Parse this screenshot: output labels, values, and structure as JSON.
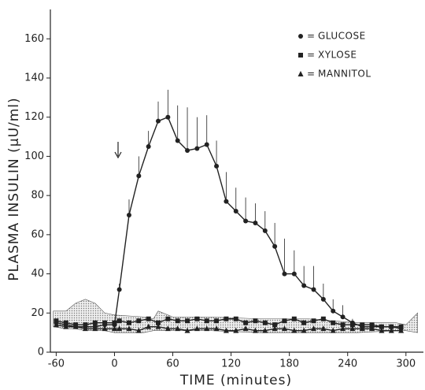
{
  "chart_data": {
    "type": "line",
    "x_label": "TIME (minutes)",
    "y_label": "PLASMA INSULIN (µU/ml)",
    "xlim": [
      -66,
      318
    ],
    "ylim": [
      0,
      175
    ],
    "xticks": [
      -60,
      0,
      60,
      120,
      180,
      240,
      300
    ],
    "yticks": [
      0,
      20,
      40,
      60,
      80,
      100,
      120,
      140,
      160
    ],
    "legend_position": "upper right",
    "legend_separator": "=",
    "x": [
      -60,
      -50,
      -40,
      -30,
      -20,
      -10,
      0,
      5,
      15,
      25,
      35,
      45,
      55,
      65,
      75,
      85,
      95,
      105,
      115,
      125,
      135,
      145,
      155,
      165,
      175,
      185,
      195,
      205,
      215,
      225,
      235,
      245,
      255,
      265,
      275,
      285,
      295
    ],
    "series": [
      {
        "name": "GLUCOSE",
        "color": "#222222",
        "marker": "circle",
        "values": [
          15,
          14,
          13,
          13,
          13,
          14,
          14,
          32,
          70,
          90,
          105,
          118,
          120,
          108,
          103,
          104,
          106,
          95,
          77,
          72,
          67,
          66,
          62,
          54,
          40,
          40,
          34,
          32,
          27,
          21,
          18,
          15,
          13,
          13,
          13,
          13,
          12
        ],
        "errors": [
          0,
          0,
          0,
          0,
          0,
          0,
          0,
          3,
          8,
          10,
          8,
          10,
          14,
          18,
          22,
          16,
          15,
          13,
          15,
          12,
          12,
          10,
          10,
          12,
          18,
          12,
          10,
          12,
          8,
          6,
          6,
          2,
          0,
          0,
          0,
          0,
          0
        ]
      },
      {
        "name": "XYLOSE",
        "color": "#222222",
        "marker": "square",
        "values": [
          16,
          15,
          14,
          14,
          15,
          15,
          15,
          16,
          15,
          16,
          17,
          15,
          17,
          16,
          16,
          17,
          16,
          16,
          17,
          17,
          15,
          16,
          15,
          14,
          16,
          17,
          15,
          16,
          17,
          15,
          14,
          14,
          14,
          14,
          13,
          13,
          13
        ]
      },
      {
        "name": "MANNITOL",
        "color": "#222222",
        "marker": "triangle",
        "values": [
          14,
          13,
          13,
          12,
          12,
          12,
          12,
          12,
          12,
          11,
          13,
          13,
          12,
          12,
          11,
          12,
          12,
          12,
          11,
          11,
          12,
          11,
          11,
          12,
          12,
          11,
          11,
          12,
          12,
          11,
          12,
          12,
          12,
          12,
          11,
          11,
          11
        ]
      }
    ],
    "shaded_range": {
      "x": [
        -63,
        -50,
        -40,
        -30,
        -20,
        -10,
        0,
        30,
        40,
        45,
        60,
        100,
        150,
        200,
        250,
        290,
        300,
        312
      ],
      "upper": [
        21,
        21,
        25,
        27,
        25,
        20,
        19,
        18,
        17,
        21,
        18,
        18,
        17,
        17,
        15,
        15,
        14,
        20
      ],
      "lower": [
        13,
        12,
        12,
        11,
        11,
        11,
        10,
        10,
        11,
        11,
        11,
        11,
        10,
        10,
        10,
        11,
        11,
        10
      ]
    }
  }
}
